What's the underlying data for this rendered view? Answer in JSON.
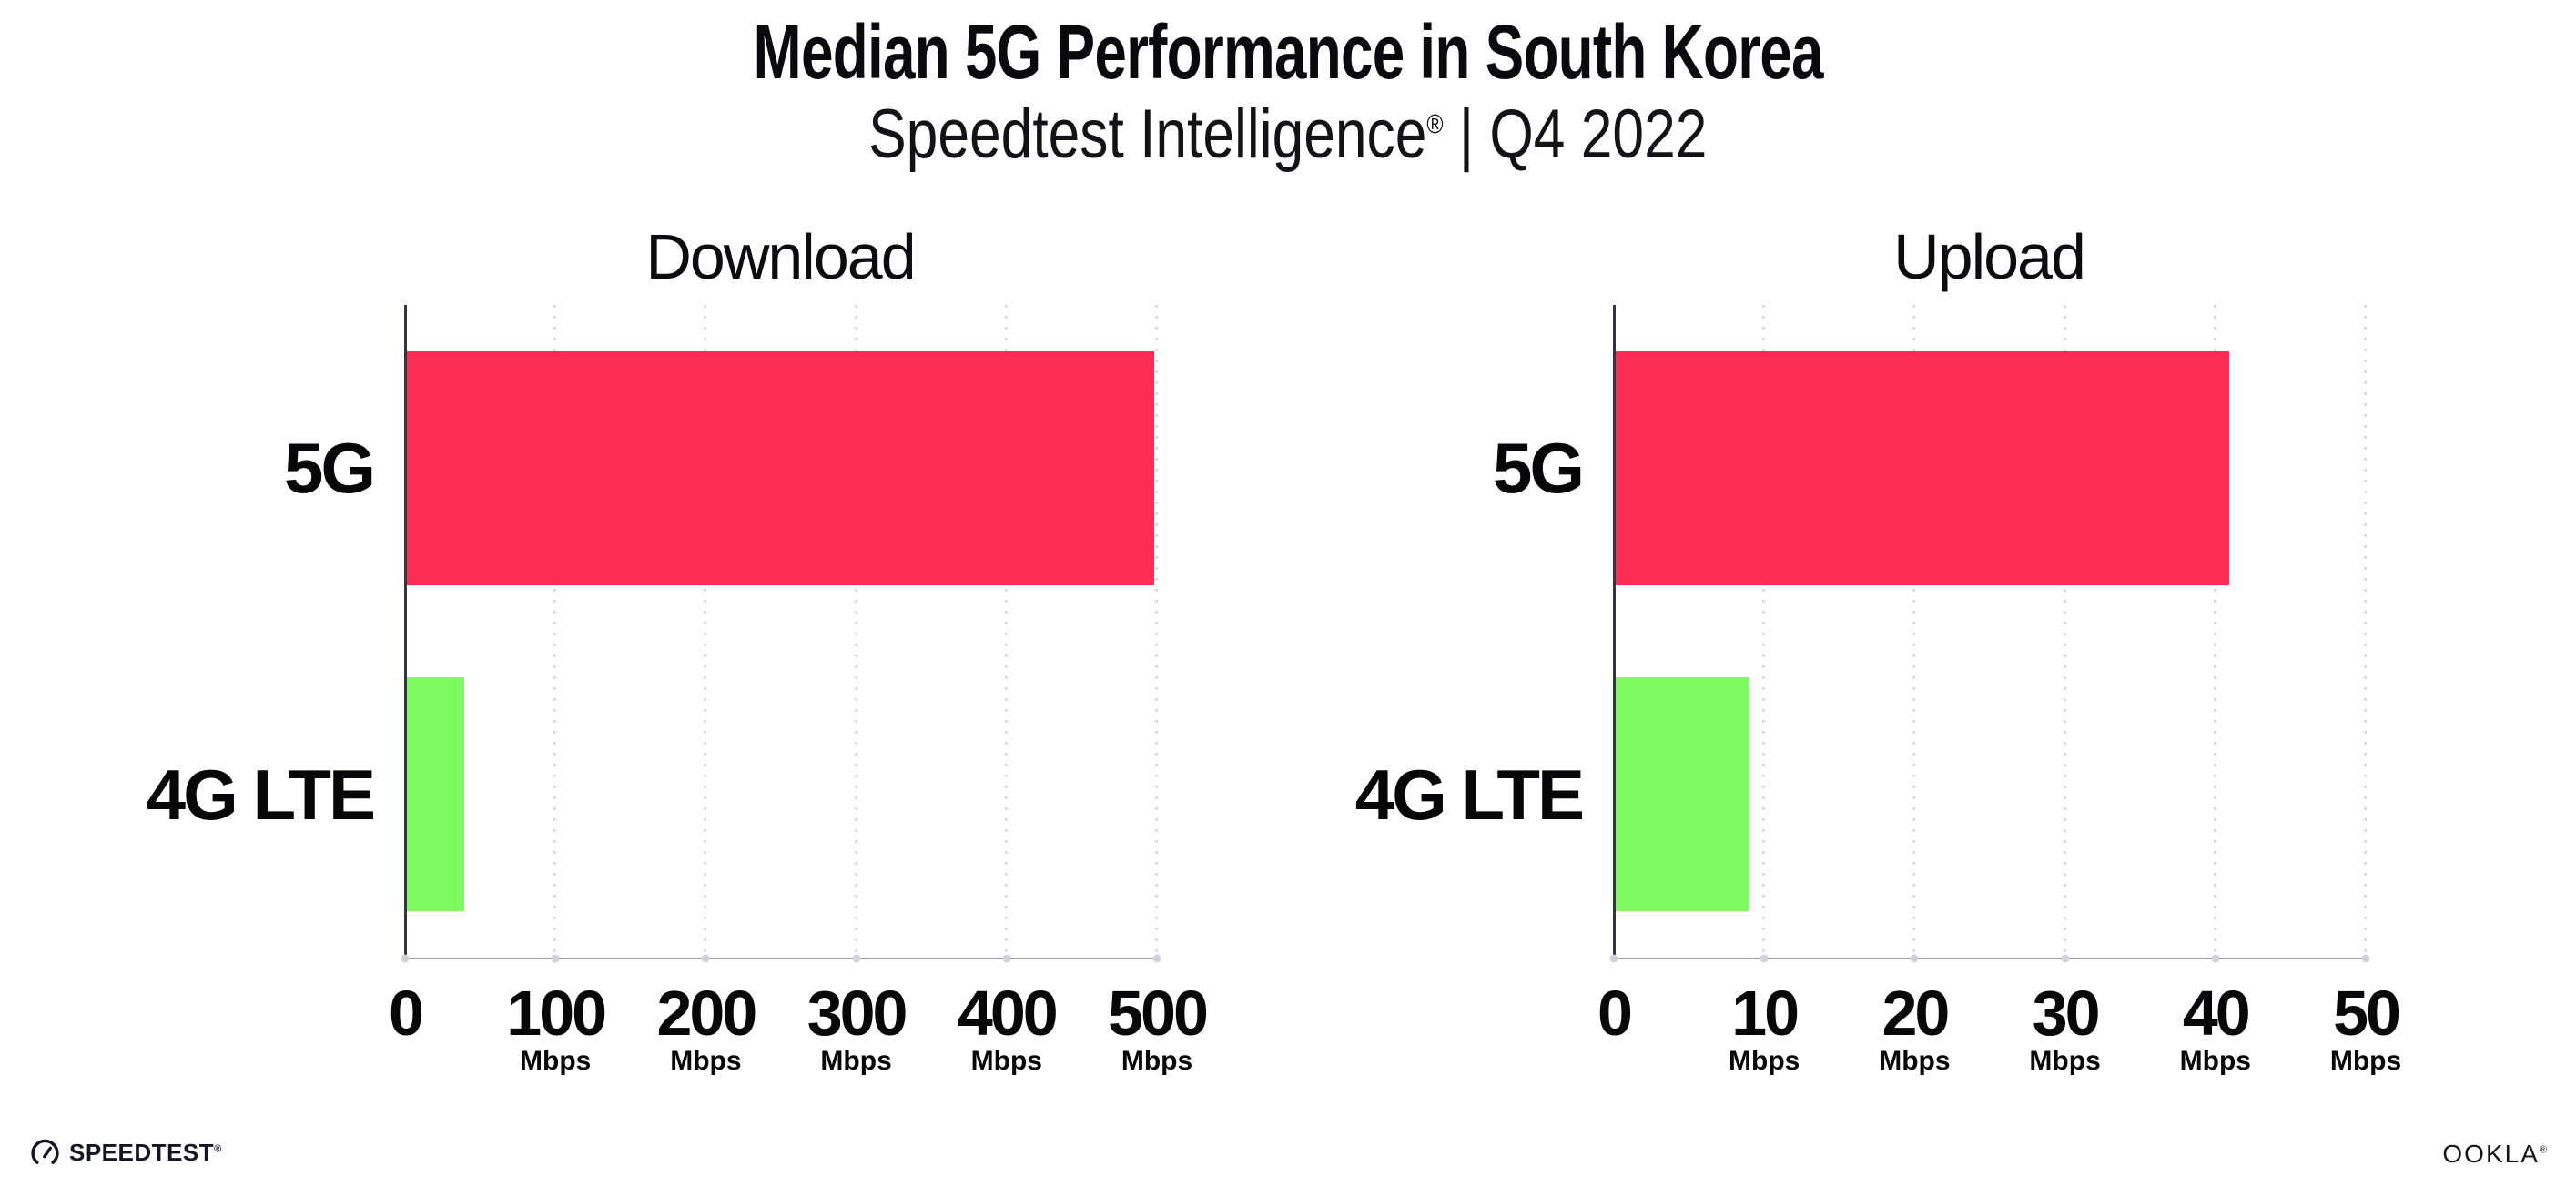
{
  "header": {
    "title": "Median 5G Performance in South Korea",
    "subtitle_brand": "Speedtest Intelligence",
    "subtitle_reg": "®",
    "subtitle_rest": " | Q4 2022"
  },
  "footer": {
    "speedtest_label": "SPEEDTEST",
    "speedtest_reg": "®",
    "ookla_label": "OOKLA",
    "ookla_reg": "®"
  },
  "colors": {
    "bar_5g": "#FC2D55",
    "bar_4g": "#7EFA62",
    "y_axis": "#35353f",
    "x_axis": "#9b9ba3",
    "gridline": "#dcdce4",
    "text": "#0a0a0e"
  },
  "chart_data": [
    {
      "type": "bar",
      "orientation": "horizontal",
      "title": "Download",
      "categories": [
        "5G",
        "4G LTE"
      ],
      "values": [
        499,
        40
      ],
      "unit": "Mbps",
      "xlim": [
        0,
        500
      ],
      "xticks": [
        0,
        100,
        200,
        300,
        400,
        500
      ],
      "tick_unit_label": "Mbps",
      "bar_colors": [
        "#FC2D55",
        "#7EFA62"
      ],
      "grid": "vertical-dotted",
      "legend": "none"
    },
    {
      "type": "bar",
      "orientation": "horizontal",
      "title": "Upload",
      "categories": [
        "5G",
        "4G LTE"
      ],
      "values": [
        41,
        9
      ],
      "unit": "Mbps",
      "xlim": [
        0,
        50
      ],
      "xticks": [
        0,
        10,
        20,
        30,
        40,
        50
      ],
      "tick_unit_label": "Mbps",
      "bar_colors": [
        "#FC2D55",
        "#7EFA62"
      ],
      "grid": "vertical-dotted",
      "legend": "none"
    }
  ]
}
